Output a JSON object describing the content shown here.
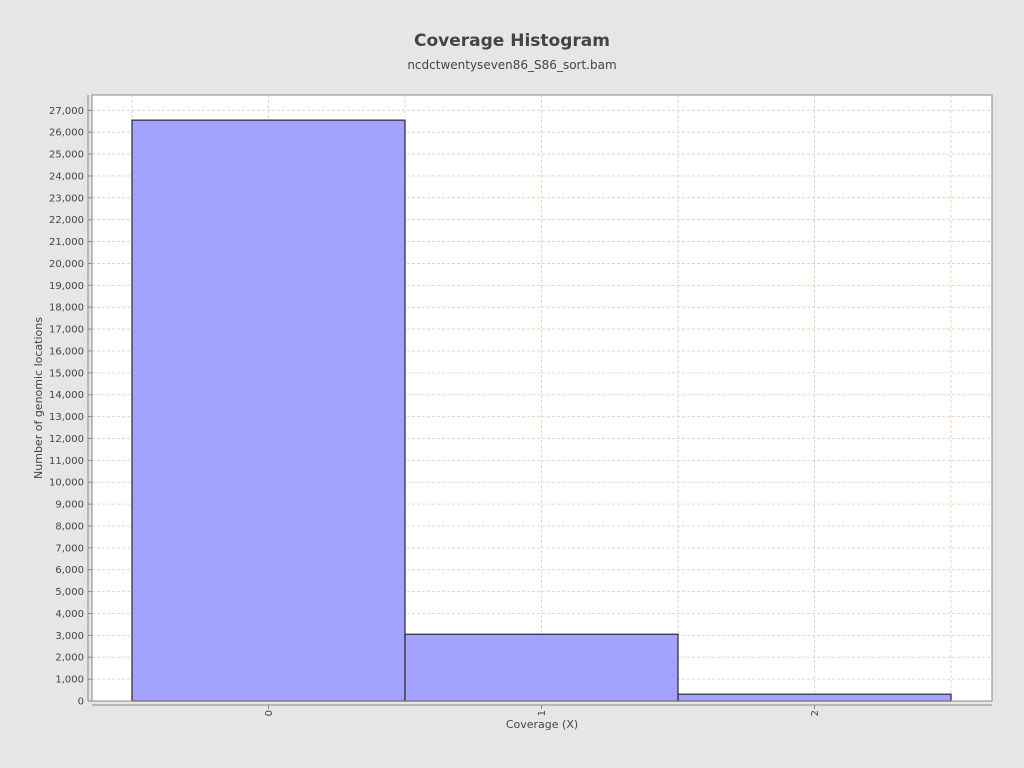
{
  "chart_data": {
    "type": "bar",
    "title": "Coverage Histogram",
    "subtitle": "ncdctwentyseven86_S86_sort.bam",
    "xlabel": "Coverage (X)",
    "ylabel": "Number of genomic locations",
    "categories": [
      "0",
      "1",
      "2"
    ],
    "values": [
      26550,
      3050,
      310
    ],
    "ylim": [
      0,
      27700
    ],
    "yticks": [
      0,
      1000,
      2000,
      3000,
      4000,
      5000,
      6000,
      7000,
      8000,
      9000,
      10000,
      11000,
      12000,
      13000,
      14000,
      15000,
      16000,
      17000,
      18000,
      19000,
      20000,
      21000,
      22000,
      23000,
      24000,
      25000,
      26000,
      27000
    ],
    "ytick_labels": [
      "0",
      "1,000",
      "2,000",
      "3,000",
      "4,000",
      "5,000",
      "6,000",
      "7,000",
      "8,000",
      "9,000",
      "10,000",
      "11,000",
      "12,000",
      "13,000",
      "14,000",
      "15,000",
      "16,000",
      "17,000",
      "18,000",
      "19,000",
      "20,000",
      "21,000",
      "22,000",
      "23,000",
      "24,000",
      "25,000",
      "26,000",
      "27,000"
    ],
    "grid": true,
    "legend": "none",
    "colors": {
      "bar_fill": "#a3a3fd",
      "bar_stroke": "#333344",
      "grid": "#f0c8b0",
      "plot_bg": "#ffffff",
      "page_bg": "#e6e6e6"
    }
  }
}
